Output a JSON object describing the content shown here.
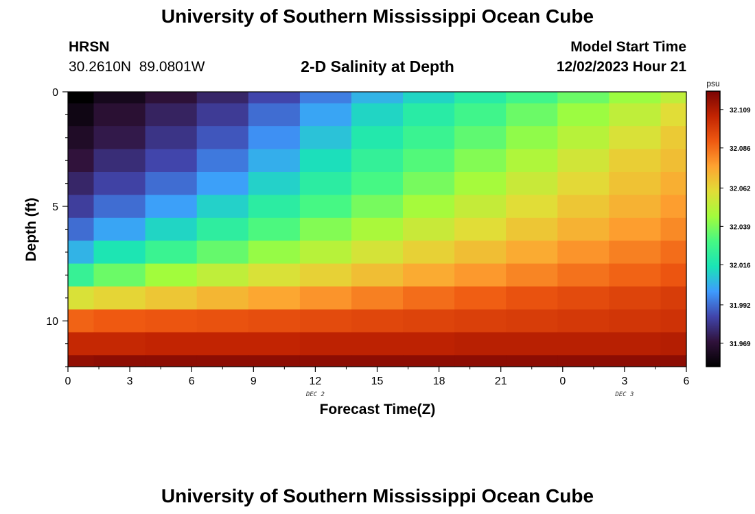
{
  "page": {
    "title": "University of Southern Mississippi Ocean Cube",
    "title_repeat": "University of Southern Mississippi Ocean Cube"
  },
  "header": {
    "station": "HRSN",
    "coords": "30.2610N  89.0801W",
    "plot_title": "2-D Salinity at Depth",
    "model_label": "Model Start Time",
    "model_time": "12/02/2023 Hour 21"
  },
  "chart_data": {
    "type": "heatmap",
    "title": "2-D Salinity at Depth",
    "xlabel": "Forecast Time(Z)",
    "ylabel": "Depth (ft)",
    "x_tick_labels": [
      "0",
      "3",
      "6",
      "9",
      "12",
      "15",
      "18",
      "21",
      "0",
      "3",
      "6"
    ],
    "x_day_labels": [
      {
        "label": "DEC 2",
        "at_hour": 12
      },
      {
        "label": "DEC 3",
        "at_hour": 27
      }
    ],
    "xlim": [
      0,
      30
    ],
    "y_tick_labels": [
      "0",
      "5",
      "10"
    ],
    "ylim": [
      0,
      12
    ],
    "columns_hours": [
      0,
      2.5,
      5,
      7.5,
      10,
      12.5,
      15,
      17.5,
      20,
      22.5,
      25,
      27.5,
      30
    ],
    "rows_depth_ft": [
      0,
      1,
      2,
      3,
      4,
      5,
      6,
      7,
      8,
      9,
      10,
      11,
      12
    ],
    "values": [
      [
        31.955,
        31.962,
        31.969,
        31.976,
        31.985,
        31.995,
        32.005,
        32.012,
        32.02,
        32.028,
        32.036,
        32.044,
        32.052
      ],
      [
        31.96,
        31.968,
        31.975,
        31.982,
        31.992,
        32.002,
        32.012,
        32.02,
        32.028,
        32.036,
        32.044,
        32.052,
        32.06
      ],
      [
        31.965,
        31.972,
        31.98,
        31.988,
        31.998,
        32.008,
        32.018,
        32.026,
        32.034,
        32.042,
        32.05,
        32.058,
        32.065
      ],
      [
        31.97,
        31.978,
        31.985,
        31.994,
        32.004,
        32.014,
        32.024,
        32.032,
        32.04,
        32.048,
        32.056,
        32.064,
        32.068
      ],
      [
        31.976,
        31.984,
        31.992,
        32.001,
        32.011,
        32.021,
        32.03,
        32.038,
        32.046,
        32.054,
        32.061,
        32.067,
        32.072
      ],
      [
        31.983,
        31.992,
        32.001,
        32.011,
        32.021,
        32.03,
        32.038,
        32.046,
        32.053,
        32.06,
        32.066,
        32.071,
        32.076
      ],
      [
        31.992,
        32.002,
        32.012,
        32.022,
        32.031,
        32.04,
        32.047,
        32.054,
        32.06,
        32.066,
        32.071,
        32.076,
        32.08
      ],
      [
        32.005,
        32.016,
        32.026,
        32.035,
        32.043,
        32.05,
        32.057,
        32.063,
        32.068,
        32.073,
        32.078,
        32.082,
        32.086
      ],
      [
        32.025,
        32.036,
        32.045,
        32.052,
        32.058,
        32.063,
        32.068,
        32.073,
        32.077,
        32.081,
        32.085,
        32.088,
        32.091
      ],
      [
        32.058,
        32.062,
        32.066,
        32.07,
        32.074,
        32.078,
        32.082,
        32.086,
        32.089,
        32.092,
        32.094,
        32.096,
        32.098
      ],
      [
        32.088,
        32.09,
        32.091,
        32.092,
        32.093,
        32.094,
        32.095,
        32.096,
        32.097,
        32.098,
        32.099,
        32.1,
        32.101
      ],
      [
        32.104,
        32.104,
        32.105,
        32.105,
        32.105,
        32.106,
        32.106,
        32.106,
        32.107,
        32.107,
        32.107,
        32.107,
        32.108
      ],
      [
        32.115,
        32.116,
        32.116,
        32.116,
        32.116,
        32.116,
        32.116,
        32.116,
        32.116,
        32.116,
        32.116,
        32.116,
        32.116
      ]
    ],
    "colorbar": {
      "unit": "psu",
      "vmin": 31.955,
      "vmax": 32.12,
      "tick_values": [
        31.969,
        31.992,
        32.016,
        32.039,
        32.062,
        32.086,
        32.109
      ],
      "tick_labels": [
        "31.969",
        "31.992",
        "32.016",
        "32.039",
        "32.062",
        "32.086",
        "32.109"
      ]
    }
  },
  "colors": {
    "background": "#ffffff",
    "axis": "#000000",
    "colormap": [
      "#000000",
      "#30123b",
      "#4145ab",
      "#3e9bfe",
      "#1ae4b6",
      "#46f884",
      "#a2fc3c",
      "#e1dd37",
      "#fea331",
      "#ef5911",
      "#c22402",
      "#7a0403"
    ]
  }
}
